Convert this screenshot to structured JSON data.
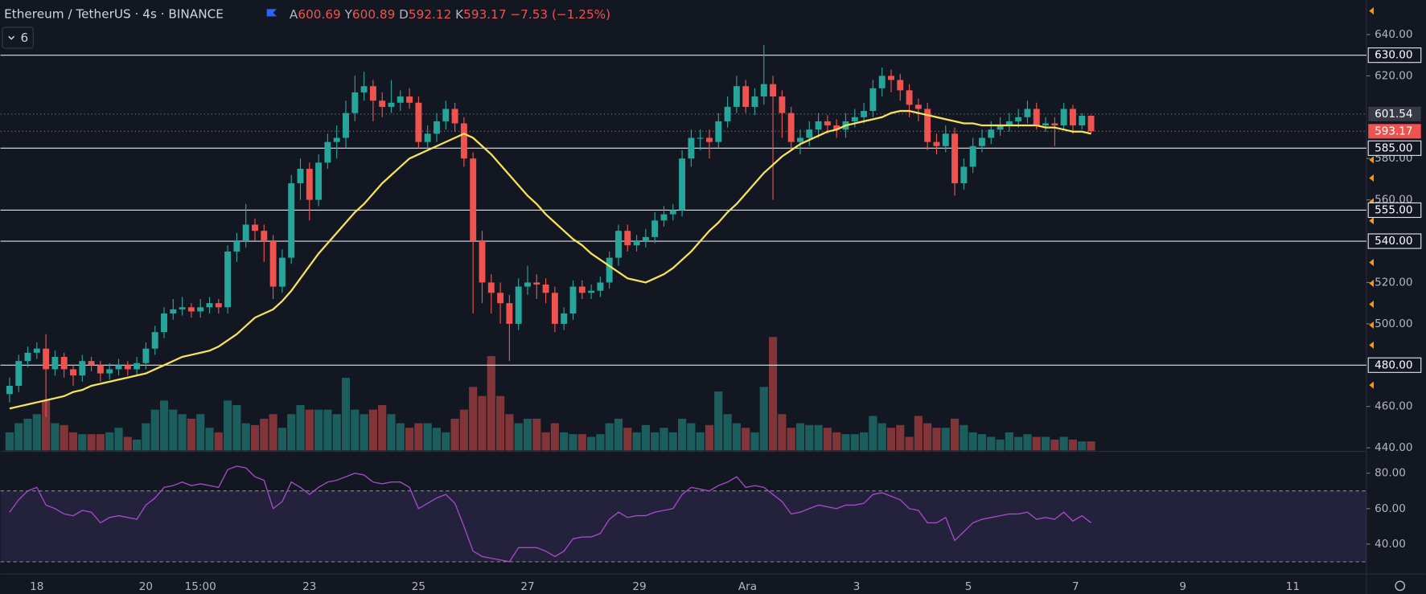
{
  "chart_data": {
    "type": "candlestick",
    "title": "Ethereum / TetherUS · 4s · BINANCE",
    "ohlc_labels": [
      "A",
      "Y",
      "D",
      "K"
    ],
    "change": "−7.53 (−1.25%)",
    "indicator_count": "6",
    "up_color": "#26a69a",
    "down_color": "#ef5350",
    "ma_color": "#f7e35a",
    "rsi_color": "#a34bc4",
    "ylim": [
      438.7,
      656.7
    ],
    "yticks": [
      {
        "value": 640,
        "label": "640.00"
      },
      {
        "value": 620,
        "label": "620.00"
      },
      {
        "value": 580,
        "label": "580.00"
      },
      {
        "value": 560,
        "label": "560.00"
      },
      {
        "value": 520,
        "label": "520.00"
      },
      {
        "value": 500,
        "label": "500.00"
      },
      {
        "value": 460,
        "label": "460.00"
      },
      {
        "value": 440,
        "label": "440.00"
      }
    ],
    "hlines": [
      {
        "value": 630,
        "label": "630.00"
      },
      {
        "value": 585,
        "label": "585.00"
      },
      {
        "value": 555,
        "label": "555.00"
      },
      {
        "value": 540,
        "label": "540.00"
      },
      {
        "value": 480,
        "label": "480.00"
      }
    ],
    "ref_price": {
      "value": 601.54,
      "label": "601.54"
    },
    "last_price": {
      "value": 593.17,
      "label": "593.17"
    },
    "xticks": [
      "18",
      "20",
      "15:00",
      "23",
      "25",
      "27",
      "29",
      "Ara",
      "3",
      "5",
      "7",
      "9",
      "11"
    ],
    "rsi_ylim": [
      23.1,
      92.3
    ],
    "rsi_yticks": [
      {
        "value": 80,
        "label": "80.00"
      },
      {
        "value": 60,
        "label": "60.00"
      },
      {
        "value": 40,
        "label": "40.00"
      }
    ],
    "rsi_bands": [
      30,
      70
    ],
    "candles": [
      [
        466,
        474,
        462,
        470
      ],
      [
        470,
        485,
        467,
        482
      ],
      [
        482,
        489,
        479,
        486
      ],
      [
        486,
        491,
        483,
        488
      ],
      [
        488,
        495,
        455,
        478
      ],
      [
        478,
        487,
        475,
        484
      ],
      [
        484,
        486,
        474,
        478
      ],
      [
        478,
        480,
        470,
        475
      ],
      [
        475,
        485,
        472,
        482
      ],
      [
        482,
        484,
        477,
        480
      ],
      [
        480,
        482,
        472,
        476
      ],
      [
        476,
        481,
        473,
        478
      ],
      [
        478,
        483,
        475,
        480
      ],
      [
        480,
        482,
        475,
        478
      ],
      [
        478,
        484,
        475,
        481
      ],
      [
        481,
        491,
        478,
        488
      ],
      [
        488,
        499,
        485,
        496
      ],
      [
        496,
        508,
        493,
        505
      ],
      [
        505,
        512,
        502,
        507
      ],
      [
        507,
        513,
        504,
        508
      ],
      [
        508,
        510,
        503,
        506
      ],
      [
        506,
        512,
        503,
        508
      ],
      [
        508,
        513,
        505,
        510
      ],
      [
        510,
        512,
        505,
        508
      ],
      [
        508,
        538,
        505,
        535
      ],
      [
        535,
        544,
        530,
        540
      ],
      [
        540,
        558,
        537,
        548
      ],
      [
        548,
        551,
        540,
        545
      ],
      [
        545,
        548,
        530,
        540
      ],
      [
        540,
        543,
        512,
        518
      ],
      [
        518,
        536,
        515,
        532
      ],
      [
        532,
        572,
        529,
        568
      ],
      [
        568,
        580,
        560,
        575
      ],
      [
        575,
        578,
        550,
        560
      ],
      [
        560,
        582,
        557,
        578
      ],
      [
        578,
        592,
        575,
        588
      ],
      [
        588,
        596,
        580,
        590
      ],
      [
        590,
        608,
        585,
        602
      ],
      [
        602,
        620,
        598,
        612
      ],
      [
        612,
        622,
        608,
        615
      ],
      [
        615,
        618,
        598,
        608
      ],
      [
        608,
        612,
        600,
        605
      ],
      [
        605,
        618,
        602,
        607
      ],
      [
        607,
        613,
        603,
        610
      ],
      [
        610,
        614,
        604,
        607
      ],
      [
        607,
        610,
        585,
        588
      ],
      [
        588,
        596,
        584,
        592
      ],
      [
        592,
        602,
        588,
        598
      ],
      [
        598,
        608,
        594,
        604
      ],
      [
        604,
        607,
        593,
        597
      ],
      [
        597,
        600,
        576,
        580
      ],
      [
        580,
        583,
        505,
        540
      ],
      [
        540,
        545,
        510,
        520
      ],
      [
        520,
        524,
        505,
        515
      ],
      [
        515,
        520,
        500,
        510
      ],
      [
        510,
        514,
        482,
        500
      ],
      [
        500,
        522,
        497,
        518
      ],
      [
        518,
        528,
        514,
        520
      ],
      [
        520,
        524,
        512,
        519
      ],
      [
        519,
        522,
        510,
        515
      ],
      [
        515,
        518,
        496,
        500
      ],
      [
        500,
        508,
        497,
        505
      ],
      [
        505,
        521,
        502,
        518
      ],
      [
        518,
        521,
        512,
        515
      ],
      [
        515,
        519,
        512,
        516
      ],
      [
        516,
        523,
        513,
        520
      ],
      [
        520,
        535,
        517,
        532
      ],
      [
        532,
        548,
        528,
        545
      ],
      [
        545,
        548,
        535,
        538
      ],
      [
        538,
        543,
        535,
        540
      ],
      [
        540,
        546,
        537,
        542
      ],
      [
        542,
        554,
        539,
        550
      ],
      [
        550,
        557,
        547,
        553
      ],
      [
        553,
        558,
        550,
        555
      ],
      [
        555,
        584,
        552,
        580
      ],
      [
        580,
        594,
        576,
        590
      ],
      [
        590,
        594,
        584,
        590
      ],
      [
        590,
        594,
        580,
        588
      ],
      [
        588,
        602,
        585,
        598
      ],
      [
        598,
        610,
        595,
        605
      ],
      [
        605,
        620,
        602,
        615
      ],
      [
        615,
        618,
        602,
        605
      ],
      [
        605,
        614,
        601,
        610
      ],
      [
        610,
        635,
        606,
        616
      ],
      [
        616,
        620,
        560,
        610
      ],
      [
        610,
        613,
        590,
        602
      ],
      [
        602,
        605,
        584,
        588
      ],
      [
        588,
        594,
        582,
        590
      ],
      [
        590,
        598,
        586,
        594
      ],
      [
        594,
        602,
        590,
        598
      ],
      [
        598,
        601,
        592,
        596
      ],
      [
        596,
        599,
        590,
        594
      ],
      [
        594,
        602,
        590,
        598
      ],
      [
        598,
        604,
        595,
        600
      ],
      [
        600,
        607,
        597,
        603
      ],
      [
        603,
        618,
        600,
        614
      ],
      [
        614,
        624,
        610,
        620
      ],
      [
        620,
        623,
        612,
        618
      ],
      [
        618,
        621,
        608,
        613
      ],
      [
        613,
        616,
        600,
        606
      ],
      [
        606,
        609,
        598,
        604
      ],
      [
        604,
        607,
        584,
        588
      ],
      [
        588,
        592,
        582,
        586
      ],
      [
        586,
        596,
        583,
        592
      ],
      [
        592,
        595,
        562,
        568
      ],
      [
        568,
        580,
        565,
        576
      ],
      [
        576,
        590,
        573,
        586
      ],
      [
        586,
        594,
        583,
        590
      ],
      [
        590,
        598,
        587,
        594
      ],
      [
        594,
        600,
        591,
        596
      ],
      [
        596,
        602,
        593,
        598
      ],
      [
        598,
        604,
        595,
        600
      ],
      [
        600,
        608,
        597,
        604
      ],
      [
        604,
        607,
        594,
        596
      ],
      [
        596,
        600,
        593,
        597
      ],
      [
        597,
        600,
        586,
        596
      ],
      [
        596,
        607,
        594,
        604
      ],
      [
        604,
        606,
        592,
        596
      ],
      [
        596,
        602,
        594,
        600.69
      ],
      [
        600.69,
        600.89,
        592.12,
        593.17
      ]
    ],
    "volume": [
      20,
      30,
      35,
      40,
      55,
      30,
      28,
      20,
      18,
      18,
      18,
      20,
      25,
      15,
      12,
      30,
      45,
      55,
      45,
      40,
      35,
      40,
      25,
      20,
      55,
      50,
      30,
      28,
      35,
      40,
      25,
      40,
      50,
      45,
      45,
      45,
      40,
      80,
      45,
      40,
      45,
      50,
      40,
      30,
      25,
      30,
      30,
      25,
      20,
      35,
      45,
      70,
      60,
      104,
      60,
      40,
      30,
      35,
      35,
      20,
      30,
      20,
      18,
      18,
      15,
      18,
      30,
      35,
      25,
      20,
      28,
      20,
      25,
      20,
      35,
      30,
      20,
      28,
      65,
      40,
      30,
      25,
      20,
      70,
      125,
      40,
      25,
      30,
      28,
      28,
      25,
      20,
      18,
      18,
      20,
      38,
      30,
      25,
      28,
      15,
      38,
      30,
      25,
      25,
      35,
      28,
      20,
      18,
      15,
      12,
      20,
      15,
      18,
      15,
      15,
      12,
      15,
      12,
      10,
      10
    ],
    "ma": [
      459,
      460,
      461,
      462,
      463,
      464,
      465,
      467,
      468,
      470,
      471,
      472,
      473,
      474,
      475,
      476,
      478,
      480,
      482,
      484,
      485,
      486,
      487,
      489,
      492,
      495,
      499,
      503,
      505,
      507,
      511,
      516,
      522,
      528,
      534,
      539,
      544,
      549,
      554,
      558,
      563,
      568,
      572,
      576,
      580,
      582,
      584,
      586,
      588,
      590,
      592,
      590,
      586,
      582,
      577,
      572,
      567,
      562,
      558,
      553,
      549,
      545,
      541,
      538,
      534,
      531,
      528,
      525,
      522,
      521,
      520,
      522,
      524,
      527,
      531,
      535,
      540,
      545,
      549,
      554,
      558,
      563,
      568,
      573,
      577,
      581,
      584,
      587,
      589,
      591,
      593,
      594,
      596,
      597,
      598,
      599,
      600,
      602,
      603,
      603,
      602,
      601,
      600,
      599,
      598,
      597,
      597,
      596,
      596,
      596,
      596,
      596,
      596,
      596,
      595,
      595,
      594,
      593,
      593,
      592
    ],
    "rsi": [
      58,
      65,
      70,
      72,
      62,
      60,
      57,
      56,
      59,
      58,
      52,
      55,
      56,
      55,
      54,
      62,
      66,
      72,
      73,
      75,
      73,
      74,
      73,
      72,
      82,
      84,
      83,
      78,
      76,
      60,
      64,
      75,
      72,
      68,
      72,
      75,
      76,
      78,
      80,
      79,
      75,
      74,
      75,
      75,
      72,
      60,
      63,
      66,
      68,
      63,
      50,
      36,
      33,
      32,
      31,
      30,
      38,
      38,
      38,
      36,
      33,
      36,
      43,
      44,
      44,
      46,
      54,
      58,
      55,
      56,
      56,
      58,
      59,
      60,
      68,
      72,
      71,
      70,
      73,
      75,
      78,
      72,
      73,
      72,
      68,
      64,
      57,
      58,
      60,
      62,
      61,
      60,
      62,
      62,
      63,
      68,
      69,
      67,
      65,
      60,
      59,
      52,
      52,
      55,
      42,
      47,
      52,
      54,
      55,
      56,
      57,
      57,
      58,
      54,
      55,
      54,
      58,
      53,
      56,
      52
    ]
  }
}
